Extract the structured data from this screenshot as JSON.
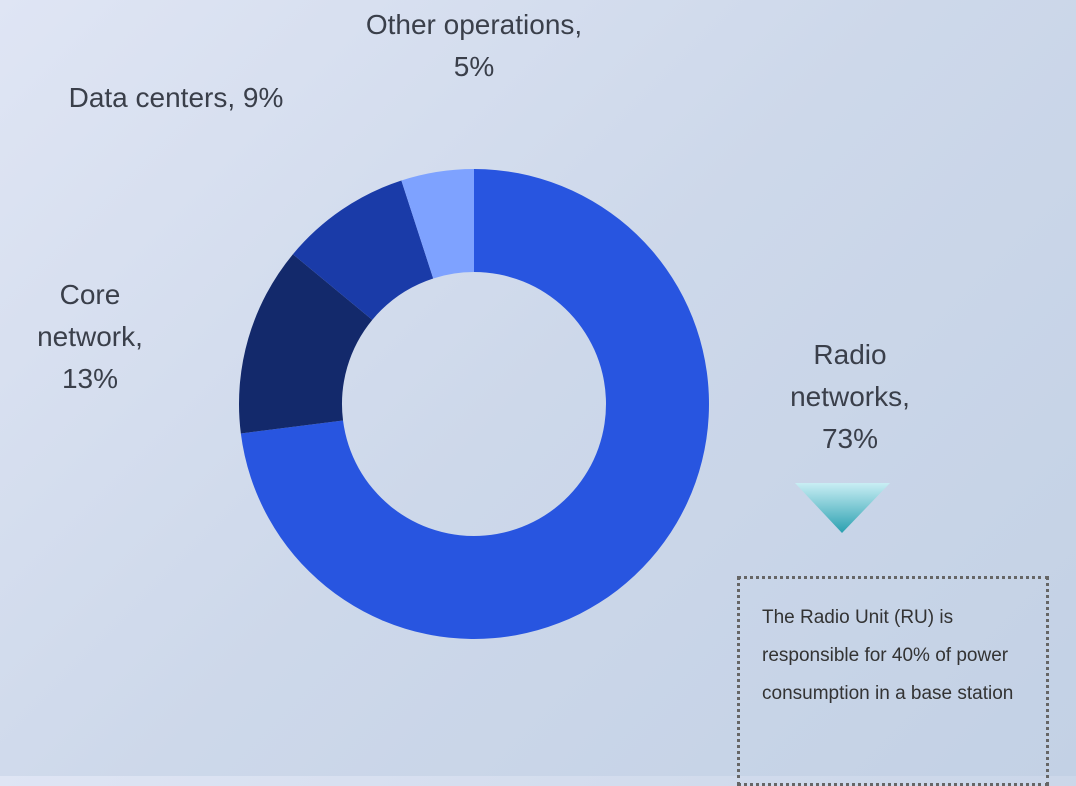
{
  "chart_data": {
    "type": "donut",
    "labels": [
      "Radio networks, 73%",
      "Core network, 13%",
      "Data centers, 9%",
      "Other operations, 5%"
    ],
    "values": [
      73,
      13,
      9,
      5
    ],
    "colors": [
      "#2855e0",
      "#13296b",
      "#1a3ba8",
      "#7ea2ff"
    ],
    "annotation": "The Radio Unit (RU) is responsible for 40% of power consumption in a base station"
  }
}
